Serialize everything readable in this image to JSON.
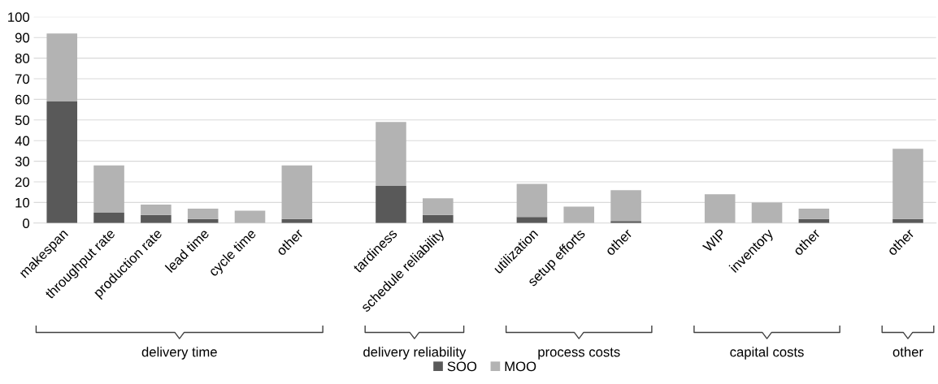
{
  "chart_data": {
    "type": "bar",
    "stacked": true,
    "categories": [
      "makespan",
      "throughput rate",
      "production rate",
      "lead time",
      "cycle time",
      "other",
      null,
      "tardiness",
      "schedule reliability",
      null,
      "utilization",
      "setup efforts",
      "other",
      null,
      "WIP",
      "inventory",
      "other",
      null,
      "other"
    ],
    "series": [
      {
        "name": "SOO",
        "color": "#595959",
        "values": [
          59,
          5,
          4,
          2,
          0,
          2,
          null,
          18,
          4,
          null,
          3,
          0,
          1,
          null,
          0,
          0,
          2,
          null,
          2
        ]
      },
      {
        "name": "MOO",
        "color": "#b3b3b3",
        "values": [
          33,
          23,
          5,
          5,
          6,
          26,
          null,
          31,
          8,
          null,
          16,
          8,
          15,
          null,
          14,
          10,
          5,
          null,
          34
        ]
      }
    ],
    "ylim": [
      0,
      100
    ],
    "yticks": [
      0,
      10,
      20,
      30,
      40,
      50,
      60,
      70,
      80,
      90,
      100
    ],
    "grid": "y",
    "legend": "bottom",
    "annotations": [
      "delivery time",
      "delivery reliability",
      "process costs",
      "capital costs",
      "other"
    ]
  }
}
